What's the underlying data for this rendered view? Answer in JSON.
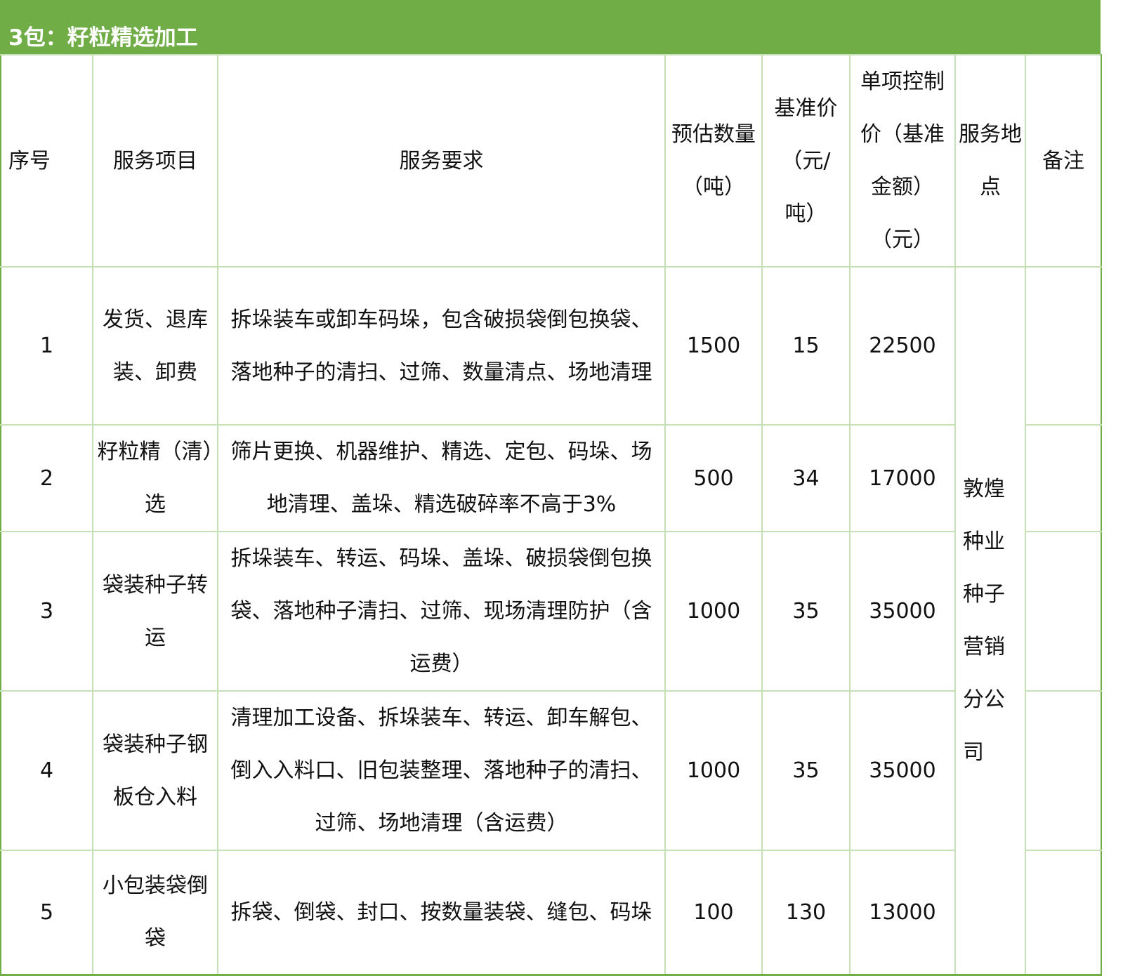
{
  "title": "3包：籽粒精选加工",
  "headers": [
    "序号",
    "服务项目",
    "服务要求",
    "预估数量（吨）",
    "基准价（元/吨）",
    "单项控制价（基准金额）（元）",
    "服务地点",
    "备注"
  ],
  "location": "敦煌种业种子营销分公司",
  "rows": [
    {
      "no": "1",
      "item": "发货、退库装、卸费",
      "req": "拆垛装车或卸车码垛，包含破损袋倒包换袋、落地种子的清扫、过筛、数量清点、场地清理",
      "qty": "1500",
      "price": "15",
      "total": "22500",
      "note": ""
    },
    {
      "no": "2",
      "item": "籽粒精（清）选",
      "req": "筛片更换、机器维护、精选、定包、码垛、场地清理、盖垛、精选破碎率不高于3%",
      "qty": "500",
      "price": "34",
      "total": "17000",
      "note": ""
    },
    {
      "no": "3",
      "item": "袋装种子转运",
      "req": "拆垛装车、转运、码垛、盖垛、破损袋倒包换袋、落地种子清扫、过筛、现场清理防护（含运费）",
      "qty": "1000",
      "price": "35",
      "total": "35000",
      "note": ""
    },
    {
      "no": "4",
      "item": "袋装种子钢板仓入料",
      "req": "清理加工设备、拆垛装车、转运、卸车解包、倒入入料口、旧包装整理、落地种子的清扫、过筛、场地清理（含运费）",
      "qty": "1000",
      "price": "35",
      "total": "35000",
      "note": ""
    },
    {
      "no": "5",
      "item": "小包装袋倒袋",
      "req": "拆袋、倒袋、封口、按数量装袋、缝包、码垛",
      "qty": "100",
      "price": "130",
      "total": "13000",
      "note": ""
    }
  ]
}
